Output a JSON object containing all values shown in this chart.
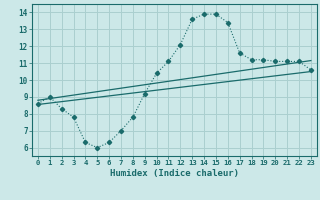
{
  "title": "",
  "xlabel": "Humidex (Indice chaleur)",
  "bg_color": "#cce8e8",
  "grid_color": "#aacfcf",
  "line_color": "#1a6b6b",
  "xlim": [
    -0.5,
    23.5
  ],
  "ylim": [
    5.5,
    14.5
  ],
  "xticks": [
    0,
    1,
    2,
    3,
    4,
    5,
    6,
    7,
    8,
    9,
    10,
    11,
    12,
    13,
    14,
    15,
    16,
    17,
    18,
    19,
    20,
    21,
    22,
    23
  ],
  "yticks": [
    6,
    7,
    8,
    9,
    10,
    11,
    12,
    13,
    14
  ],
  "curve1_x": [
    0,
    1,
    2,
    3,
    4,
    5,
    6,
    7,
    8,
    9,
    10,
    11,
    12,
    13,
    14,
    15,
    16,
    17,
    18,
    19,
    20,
    21,
    22,
    23
  ],
  "curve1_y": [
    8.6,
    9.0,
    8.3,
    7.8,
    6.3,
    6.0,
    6.3,
    7.0,
    7.8,
    9.2,
    10.4,
    11.1,
    12.1,
    13.6,
    13.9,
    13.9,
    13.4,
    11.6,
    11.2,
    11.2,
    11.1,
    11.1,
    11.1,
    10.6
  ],
  "line2_x": [
    0,
    23
  ],
  "line2_y": [
    8.55,
    10.5
  ],
  "line3_x": [
    0,
    23
  ],
  "line3_y": [
    8.8,
    11.15
  ]
}
